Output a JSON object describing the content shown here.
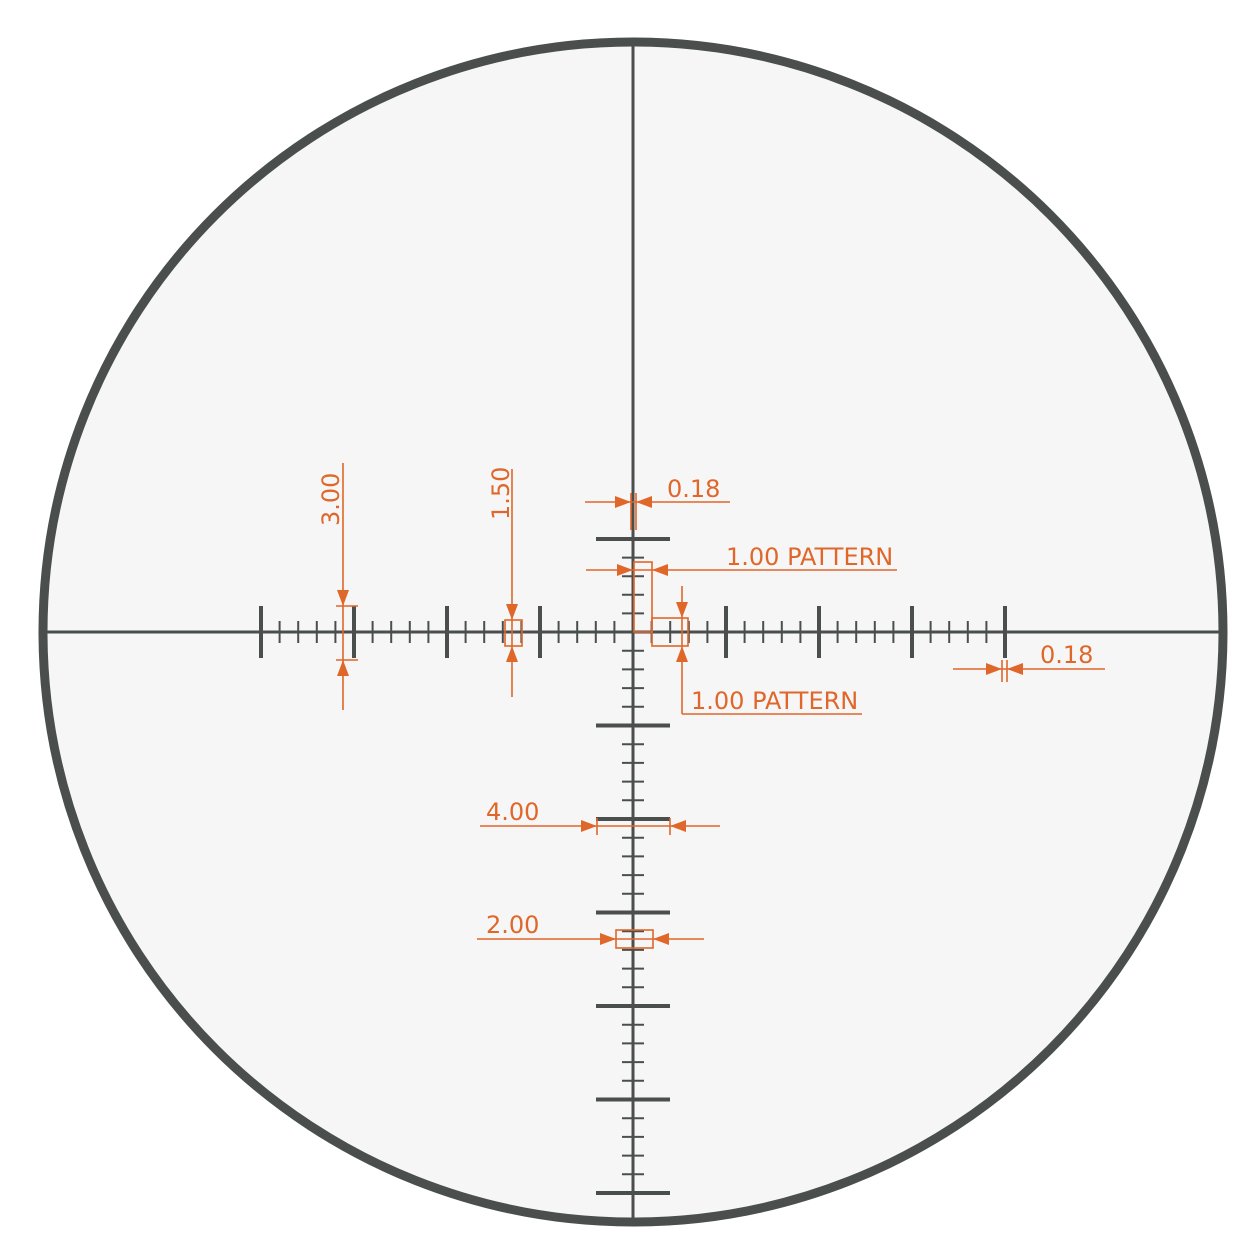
{
  "colors": {
    "reticle": "#4a4f4e",
    "dimension": "#e0672a",
    "field": "#f6f6f6",
    "background": "#ffffff"
  },
  "dimensions": {
    "horizontal_major_height": "3.00",
    "horizontal_mid_height": "1.50",
    "crosshair_thickness_top": "0.18",
    "vertical_pattern": "1.00 PATTERN",
    "horizontal_pattern": "1.00 PATTERN",
    "crosshair_thickness_right": "0.18",
    "vertical_major_width": "4.00",
    "vertical_mid_width": "2.00"
  }
}
